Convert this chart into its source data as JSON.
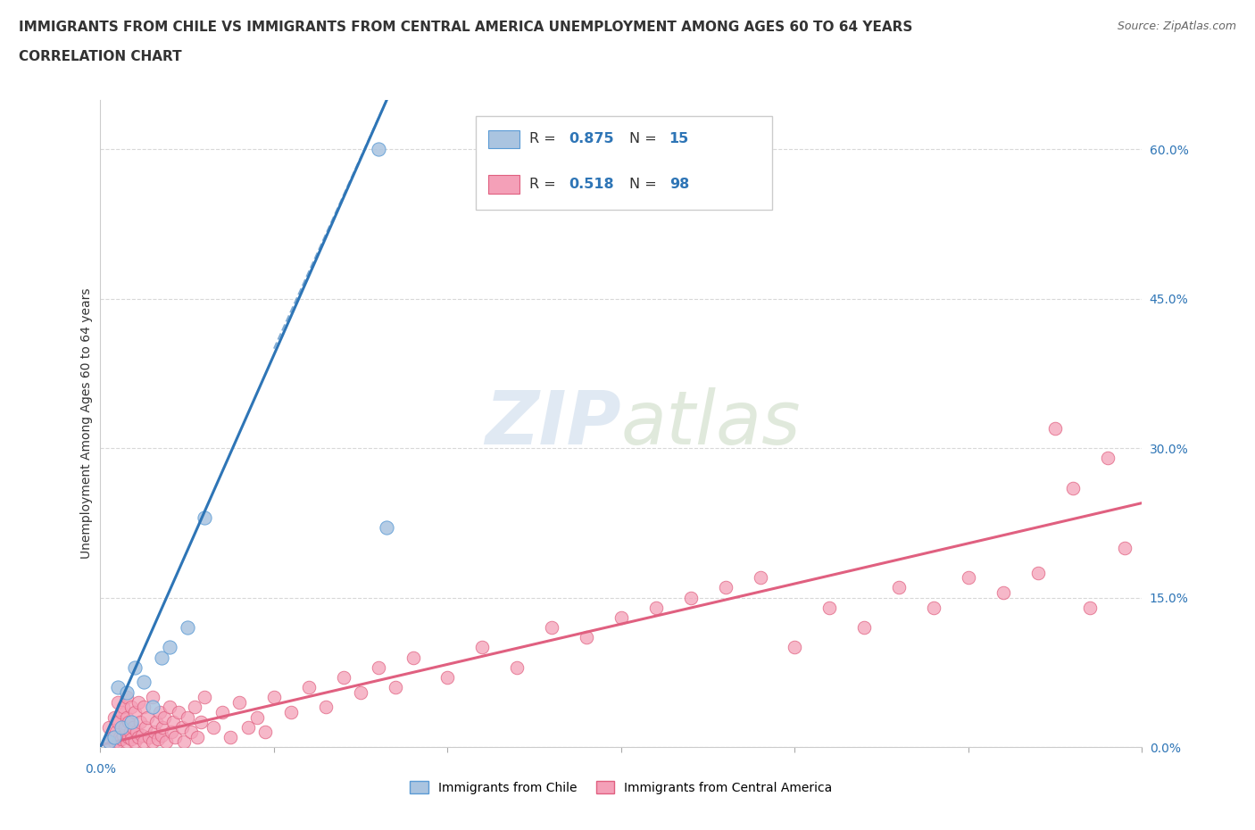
{
  "title_line1": "IMMIGRANTS FROM CHILE VS IMMIGRANTS FROM CENTRAL AMERICA UNEMPLOYMENT AMONG AGES 60 TO 64 YEARS",
  "title_line2": "CORRELATION CHART",
  "source": "Source: ZipAtlas.com",
  "ylabel": "Unemployment Among Ages 60 to 64 years",
  "xlim": [
    0,
    0.6
  ],
  "ylim": [
    0,
    0.65
  ],
  "yticks_right": [
    0.0,
    0.15,
    0.3,
    0.45,
    0.6
  ],
  "ytick_right_labels": [
    "0.0%",
    "15.0%",
    "30.0%",
    "45.0%",
    "60.0%"
  ],
  "chile_R": 0.875,
  "chile_N": 15,
  "central_R": 0.518,
  "central_N": 98,
  "chile_color": "#aac4e0",
  "chile_edge": "#5b9bd5",
  "chile_line_color": "#2e75b6",
  "central_color": "#f4a0b8",
  "central_edge": "#e06080",
  "central_line_color": "#e06080",
  "legend_color": "#2e75b6",
  "chile_x": [
    0.005,
    0.008,
    0.01,
    0.012,
    0.015,
    0.018,
    0.02,
    0.025,
    0.03,
    0.035,
    0.04,
    0.05,
    0.06,
    0.16,
    0.165
  ],
  "chile_y": [
    0.005,
    0.01,
    0.06,
    0.02,
    0.055,
    0.025,
    0.08,
    0.065,
    0.04,
    0.09,
    0.1,
    0.12,
    0.23,
    0.6,
    0.22
  ],
  "central_x": [
    0.005,
    0.005,
    0.007,
    0.008,
    0.008,
    0.009,
    0.01,
    0.01,
    0.01,
    0.011,
    0.012,
    0.012,
    0.013,
    0.013,
    0.014,
    0.015,
    0.015,
    0.015,
    0.016,
    0.016,
    0.017,
    0.018,
    0.018,
    0.019,
    0.02,
    0.02,
    0.021,
    0.022,
    0.022,
    0.023,
    0.024,
    0.025,
    0.025,
    0.026,
    0.027,
    0.028,
    0.03,
    0.03,
    0.031,
    0.032,
    0.033,
    0.034,
    0.035,
    0.036,
    0.037,
    0.038,
    0.04,
    0.041,
    0.042,
    0.043,
    0.045,
    0.047,
    0.048,
    0.05,
    0.052,
    0.054,
    0.056,
    0.058,
    0.06,
    0.065,
    0.07,
    0.075,
    0.08,
    0.085,
    0.09,
    0.095,
    0.1,
    0.11,
    0.12,
    0.13,
    0.14,
    0.15,
    0.16,
    0.17,
    0.18,
    0.2,
    0.22,
    0.24,
    0.26,
    0.28,
    0.3,
    0.32,
    0.34,
    0.36,
    0.38,
    0.4,
    0.42,
    0.44,
    0.46,
    0.48,
    0.5,
    0.52,
    0.54,
    0.55,
    0.56,
    0.57,
    0.58,
    0.59
  ],
  "central_y": [
    0.005,
    0.02,
    0.01,
    0.005,
    0.03,
    0.015,
    0.005,
    0.025,
    0.045,
    0.01,
    0.008,
    0.035,
    0.012,
    0.04,
    0.02,
    0.005,
    0.03,
    0.05,
    0.01,
    0.025,
    0.015,
    0.008,
    0.04,
    0.02,
    0.005,
    0.035,
    0.015,
    0.01,
    0.045,
    0.025,
    0.012,
    0.005,
    0.04,
    0.02,
    0.03,
    0.01,
    0.005,
    0.05,
    0.015,
    0.025,
    0.008,
    0.035,
    0.012,
    0.02,
    0.03,
    0.005,
    0.04,
    0.015,
    0.025,
    0.01,
    0.035,
    0.02,
    0.005,
    0.03,
    0.015,
    0.04,
    0.01,
    0.025,
    0.05,
    0.02,
    0.035,
    0.01,
    0.045,
    0.02,
    0.03,
    0.015,
    0.05,
    0.035,
    0.06,
    0.04,
    0.07,
    0.055,
    0.08,
    0.06,
    0.09,
    0.07,
    0.1,
    0.08,
    0.12,
    0.11,
    0.13,
    0.14,
    0.15,
    0.16,
    0.17,
    0.1,
    0.14,
    0.12,
    0.16,
    0.14,
    0.17,
    0.155,
    0.175,
    0.32,
    0.26,
    0.14,
    0.29,
    0.2
  ]
}
